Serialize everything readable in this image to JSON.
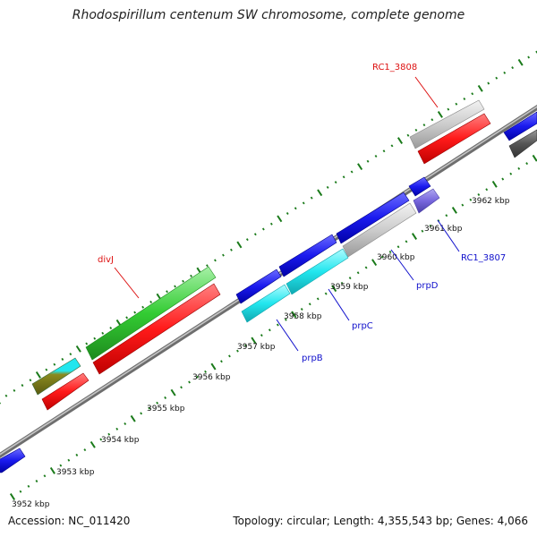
{
  "title": "Rhodospirillum centenum SW chromosome, complete genome",
  "footer": {
    "accession": "Accession: NC_011420",
    "summary": "Topology: circular; Length: 4,355,543 bp; Genes: 4,066"
  },
  "scale_labels": [
    "3952 kbp",
    "3953 kbp",
    "3954 kbp",
    "3955 kbp",
    "3956 kbp",
    "3957 kbp",
    "3958 kbp",
    "3959 kbp",
    "3960 kbp",
    "3961 kbp",
    "3962 kbp"
  ],
  "gene_labels": {
    "divj": "divJ",
    "rc1_3808": "RC1_3808",
    "prpb": "prpB",
    "prpc": "prpC",
    "prpd": "prpD",
    "rc1_3807": "RC1_3807"
  },
  "colors": {
    "backbone": "#8a8a8a",
    "tick": "#1a7a1a",
    "red_label": "#dd1111",
    "blue_label": "#1111cc",
    "cds_red": "#ff1a1a",
    "cds_blue": "#1a1aee",
    "cds_green": "#33cc33",
    "cds_cyan": "#22e6ee",
    "cds_gray": "#cccccc",
    "cds_purple": "#7766dd",
    "cds_dark": "#555555"
  }
}
